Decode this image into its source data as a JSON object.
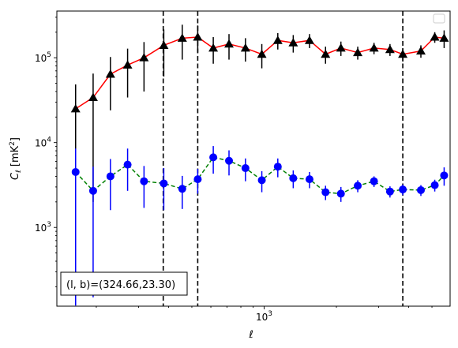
{
  "chart_data": {
    "type": "scatter",
    "xscale": "log",
    "yscale": "log",
    "xlabel": "ℓ",
    "ylabel_main": "C",
    "ylabel_sub": "ℓ",
    "ylabel_unit_prefix": "[mK",
    "ylabel_unit_sup": "2",
    "ylabel_unit_suffix": "]",
    "xlim": [
      137,
      5950
    ],
    "ylim": [
      118,
      355000
    ],
    "x_major_ticks": [
      {
        "value": 1000,
        "base": "10",
        "exp": "3"
      }
    ],
    "y_major_ticks": [
      {
        "value": 1000,
        "base": "10",
        "exp": "3"
      },
      {
        "value": 10000,
        "base": "10",
        "exp": "4"
      },
      {
        "value": 100000,
        "base": "10",
        "exp": "5"
      }
    ],
    "vlines": [
      380,
      529,
      3780
    ],
    "legend": {
      "placement": "upper right",
      "entries": []
    },
    "annotation": {
      "text": "(l, b)=(324.66,23.30)",
      "placement": "lower left"
    },
    "x": [
      164,
      194,
      229,
      270,
      316,
      382,
      456,
      529,
      614,
      714,
      836,
      978,
      1140,
      1322,
      1545,
      1802,
      2088,
      2454,
      2868,
      3343,
      3780,
      4496,
      5136,
      5619
    ],
    "series": [
      {
        "marker": "triangle",
        "line_color": "#ff0000",
        "marker_color": "#000000",
        "errorbar_color": "#000000",
        "values": [
          25000,
          34000,
          64000,
          82000,
          100000,
          140000,
          170000,
          175000,
          130000,
          145000,
          130000,
          110000,
          160000,
          150000,
          160000,
          110000,
          130000,
          115000,
          130000,
          125000,
          110000,
          120000,
          175000,
          170000
        ],
        "yerr_low": [
          23500,
          32000,
          40000,
          48000,
          60000,
          80000,
          75000,
          60000,
          45000,
          50000,
          40000,
          35000,
          35000,
          35000,
          30000,
          25000,
          25000,
          20000,
          20000,
          20000,
          20000,
          20000,
          25000,
          40000
        ],
        "yerr_high": [
          23500,
          31000,
          38000,
          46000,
          53000,
          75000,
          75000,
          65000,
          45000,
          45000,
          40000,
          35000,
          35000,
          35000,
          30000,
          25000,
          25000,
          20000,
          20000,
          20000,
          20000,
          20000,
          25000,
          40000
        ]
      },
      {
        "marker": "circle",
        "line_color": "#008000",
        "line_style": "dashed",
        "marker_color": "#0000ff",
        "errorbar_color": "#0000ff",
        "values": [
          4500,
          2700,
          4000,
          5500,
          3500,
          3300,
          2850,
          3700,
          6700,
          6100,
          5000,
          3600,
          5200,
          3800,
          3700,
          2600,
          2500,
          3100,
          3500,
          2650,
          2800,
          2750,
          3150,
          4100
        ],
        "yerr_low": [
          4380,
          2550,
          2400,
          2800,
          1800,
          1700,
          1200,
          1200,
          2400,
          2000,
          1500,
          1000,
          1300,
          900,
          800,
          500,
          500,
          500,
          500,
          400,
          400,
          400,
          500,
          1000
        ],
        "yerr_high": [
          4000,
          2500,
          2400,
          3000,
          1800,
          1700,
          1200,
          1200,
          2400,
          2000,
          1500,
          1000,
          1300,
          900,
          800,
          500,
          500,
          500,
          500,
          400,
          400,
          400,
          500,
          1000
        ]
      }
    ]
  }
}
